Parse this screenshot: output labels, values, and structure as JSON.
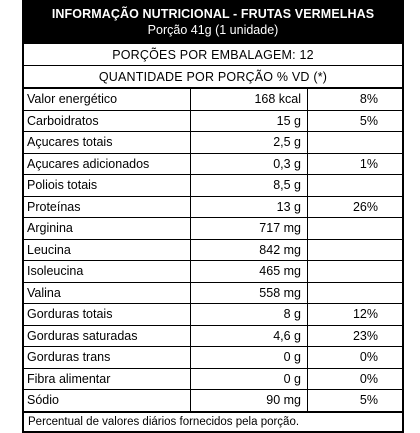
{
  "label": {
    "title": "INFORMAÇÃO NUTRICIONAL - FRUTAS VERMELHAS",
    "portion": "Porção 41g (1 unidade)",
    "servings": "PORÇÕES POR EMBALAGEM: 12",
    "per_serving_header": "QUANTIDADE POR PORÇÃO % VD (*)",
    "rows": [
      {
        "name": "Valor energético",
        "qty": "168 kcal",
        "vd": "8%"
      },
      {
        "name": "Carboidratos",
        "qty": "15 g",
        "vd": "5%"
      },
      {
        "name": "Açucares totais",
        "qty": "2,5 g",
        "vd": ""
      },
      {
        "name": "Açucares adicionados",
        "qty": "0,3 g",
        "vd": "1%"
      },
      {
        "name": "Poliois totais",
        "qty": "8,5 g",
        "vd": ""
      },
      {
        "name": "Proteínas",
        "qty": "13 g",
        "vd": "26%"
      },
      {
        "name": "Arginina",
        "qty": "717 mg",
        "vd": ""
      },
      {
        "name": "Leucina",
        "qty": "842 mg",
        "vd": ""
      },
      {
        "name": "Isoleucina",
        "qty": "465 mg",
        "vd": ""
      },
      {
        "name": "Valina",
        "qty": "558 mg",
        "vd": ""
      },
      {
        "name": "Gorduras totais",
        "qty": "8 g",
        "vd": "12%"
      },
      {
        "name": "Gorduras saturadas",
        "qty": "4,6 g",
        "vd": "23%"
      },
      {
        "name": "Gorduras trans",
        "qty": "0 g",
        "vd": "0%"
      },
      {
        "name": "Fibra alimentar",
        "qty": "0 g",
        "vd": "0%"
      },
      {
        "name": "Sódio",
        "qty": "90 mg",
        "vd": "5%"
      }
    ],
    "footnote": "Percentual de valores diários fornecidos pela porção."
  }
}
